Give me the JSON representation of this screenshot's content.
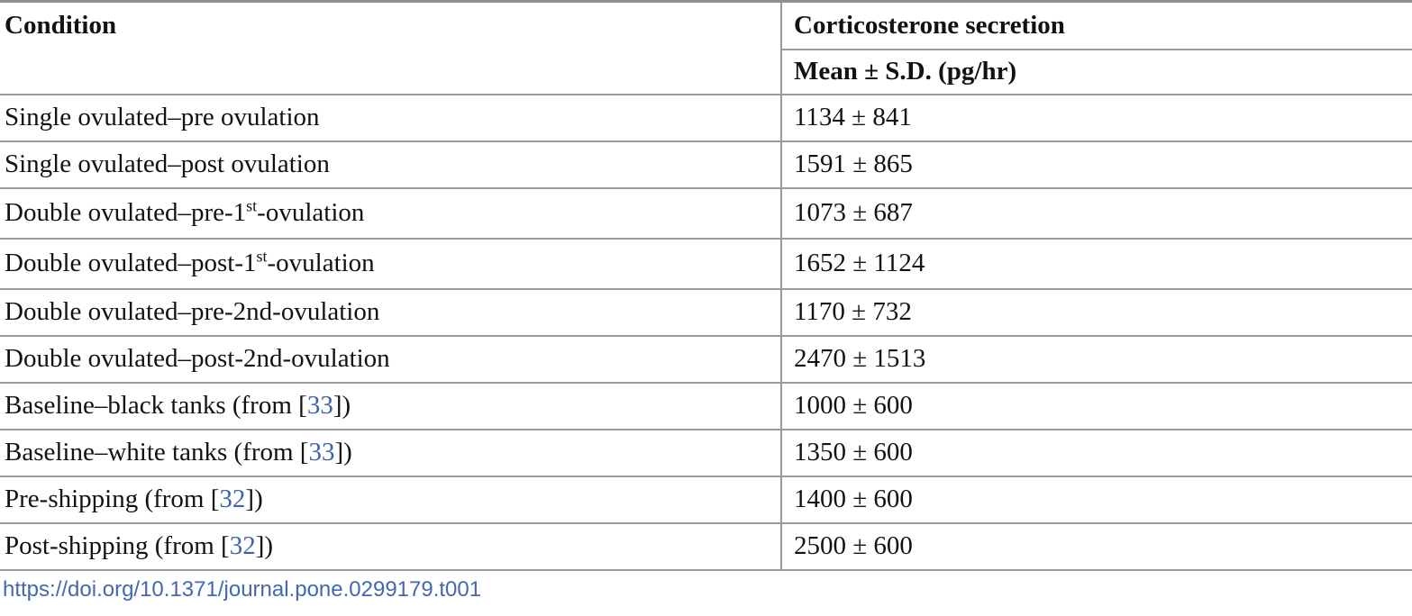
{
  "table": {
    "col1_header": "Condition",
    "col2_header": "Corticosterone secretion",
    "col2_subheader": "Mean ± S.D. (pg/hr)",
    "rows": [
      {
        "pre": "Single ovulated–pre ovulation",
        "sup": "",
        "ref": "",
        "post": "",
        "value": "1134 ± 841"
      },
      {
        "pre": "Single ovulated–post ovulation",
        "sup": "",
        "ref": "",
        "post": "",
        "value": "1591 ± 865"
      },
      {
        "pre": "Double ovulated–pre-1",
        "sup": "st",
        "ref": "",
        "post": "-ovulation",
        "value": "1073 ± 687"
      },
      {
        "pre": "Double ovulated–post-1",
        "sup": "st",
        "ref": "",
        "post": "-ovulation",
        "value": "1652 ± 1124"
      },
      {
        "pre": "Double ovulated–pre-2nd-ovulation",
        "sup": "",
        "ref": "",
        "post": "",
        "value": "1170 ± 732"
      },
      {
        "pre": "Double ovulated–post-2nd-ovulation",
        "sup": "",
        "ref": "",
        "post": "",
        "value": "2470 ± 1513"
      },
      {
        "pre": "Baseline–black tanks (from [",
        "sup": "",
        "ref": "33",
        "post": "])",
        "value": "1000 ± 600"
      },
      {
        "pre": "Baseline–white tanks (from [",
        "sup": "",
        "ref": "33",
        "post": "])",
        "value": "1350 ± 600"
      },
      {
        "pre": "Pre-shipping (from [",
        "sup": "",
        "ref": "32",
        "post": "])",
        "value": "1400 ± 600"
      },
      {
        "pre": "Post-shipping (from [",
        "sup": "",
        "ref": "32",
        "post": "])",
        "value": "2500 ± 600"
      }
    ]
  },
  "footer": {
    "doi": "https://doi.org/10.1371/journal.pone.0299179.t001"
  },
  "colors": {
    "border_gray": "#9a9a9a",
    "text": "#121212",
    "reference_link_blue": "#3f63a8",
    "doi_link_blue": "#4268b1"
  }
}
